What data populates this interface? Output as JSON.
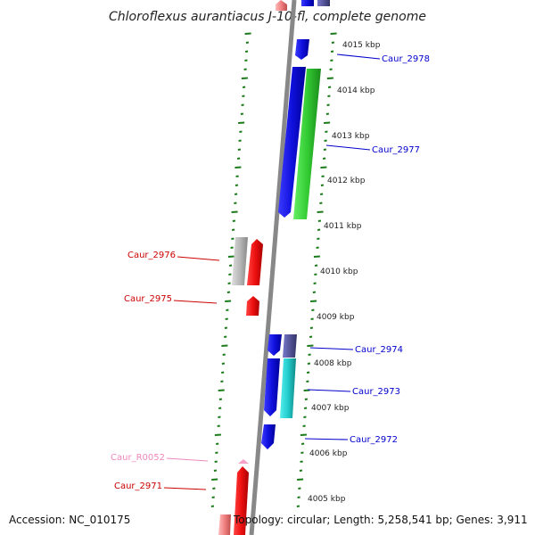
{
  "title": "Chloroflexus aurantiacus J-10-fl, complete genome",
  "footer": {
    "accession": "Accession: NC_010175",
    "summary": "Topology: circular; Length: 5,258,541 bp; Genes: 3,911"
  },
  "scale_labels": [
    "4015 kbp",
    "4014 kbp",
    "4013 kbp",
    "4012 kbp",
    "4011 kbp",
    "4010 kbp",
    "4009 kbp",
    "4008 kbp",
    "4007 kbp",
    "4006 kbp",
    "4005 kbp"
  ],
  "gene_labels": {
    "caur_2978": "Caur_2978",
    "caur_2977": "Caur_2977",
    "caur_2976": "Caur_2976",
    "caur_2975": "Caur_2975",
    "caur_2974": "Caur_2974",
    "caur_2973": "Caur_2973",
    "caur_2972": "Caur_2972",
    "caur_r0052": "Caur_R0052",
    "caur_2971": "Caur_2971"
  },
  "colors": {
    "reverse_strand_label": "#0000cc",
    "forward_strand_label": "#cc0000",
    "rna_label": "#ee88bb",
    "blue_gene": "#1a1aee",
    "green_gene": "#33cc33",
    "red_gene": "#ee1111",
    "cyan_gene": "#22cccc",
    "gray_gene": "#b0b0b0",
    "backbone": "#888888",
    "ticks": "#1a7a1a"
  }
}
